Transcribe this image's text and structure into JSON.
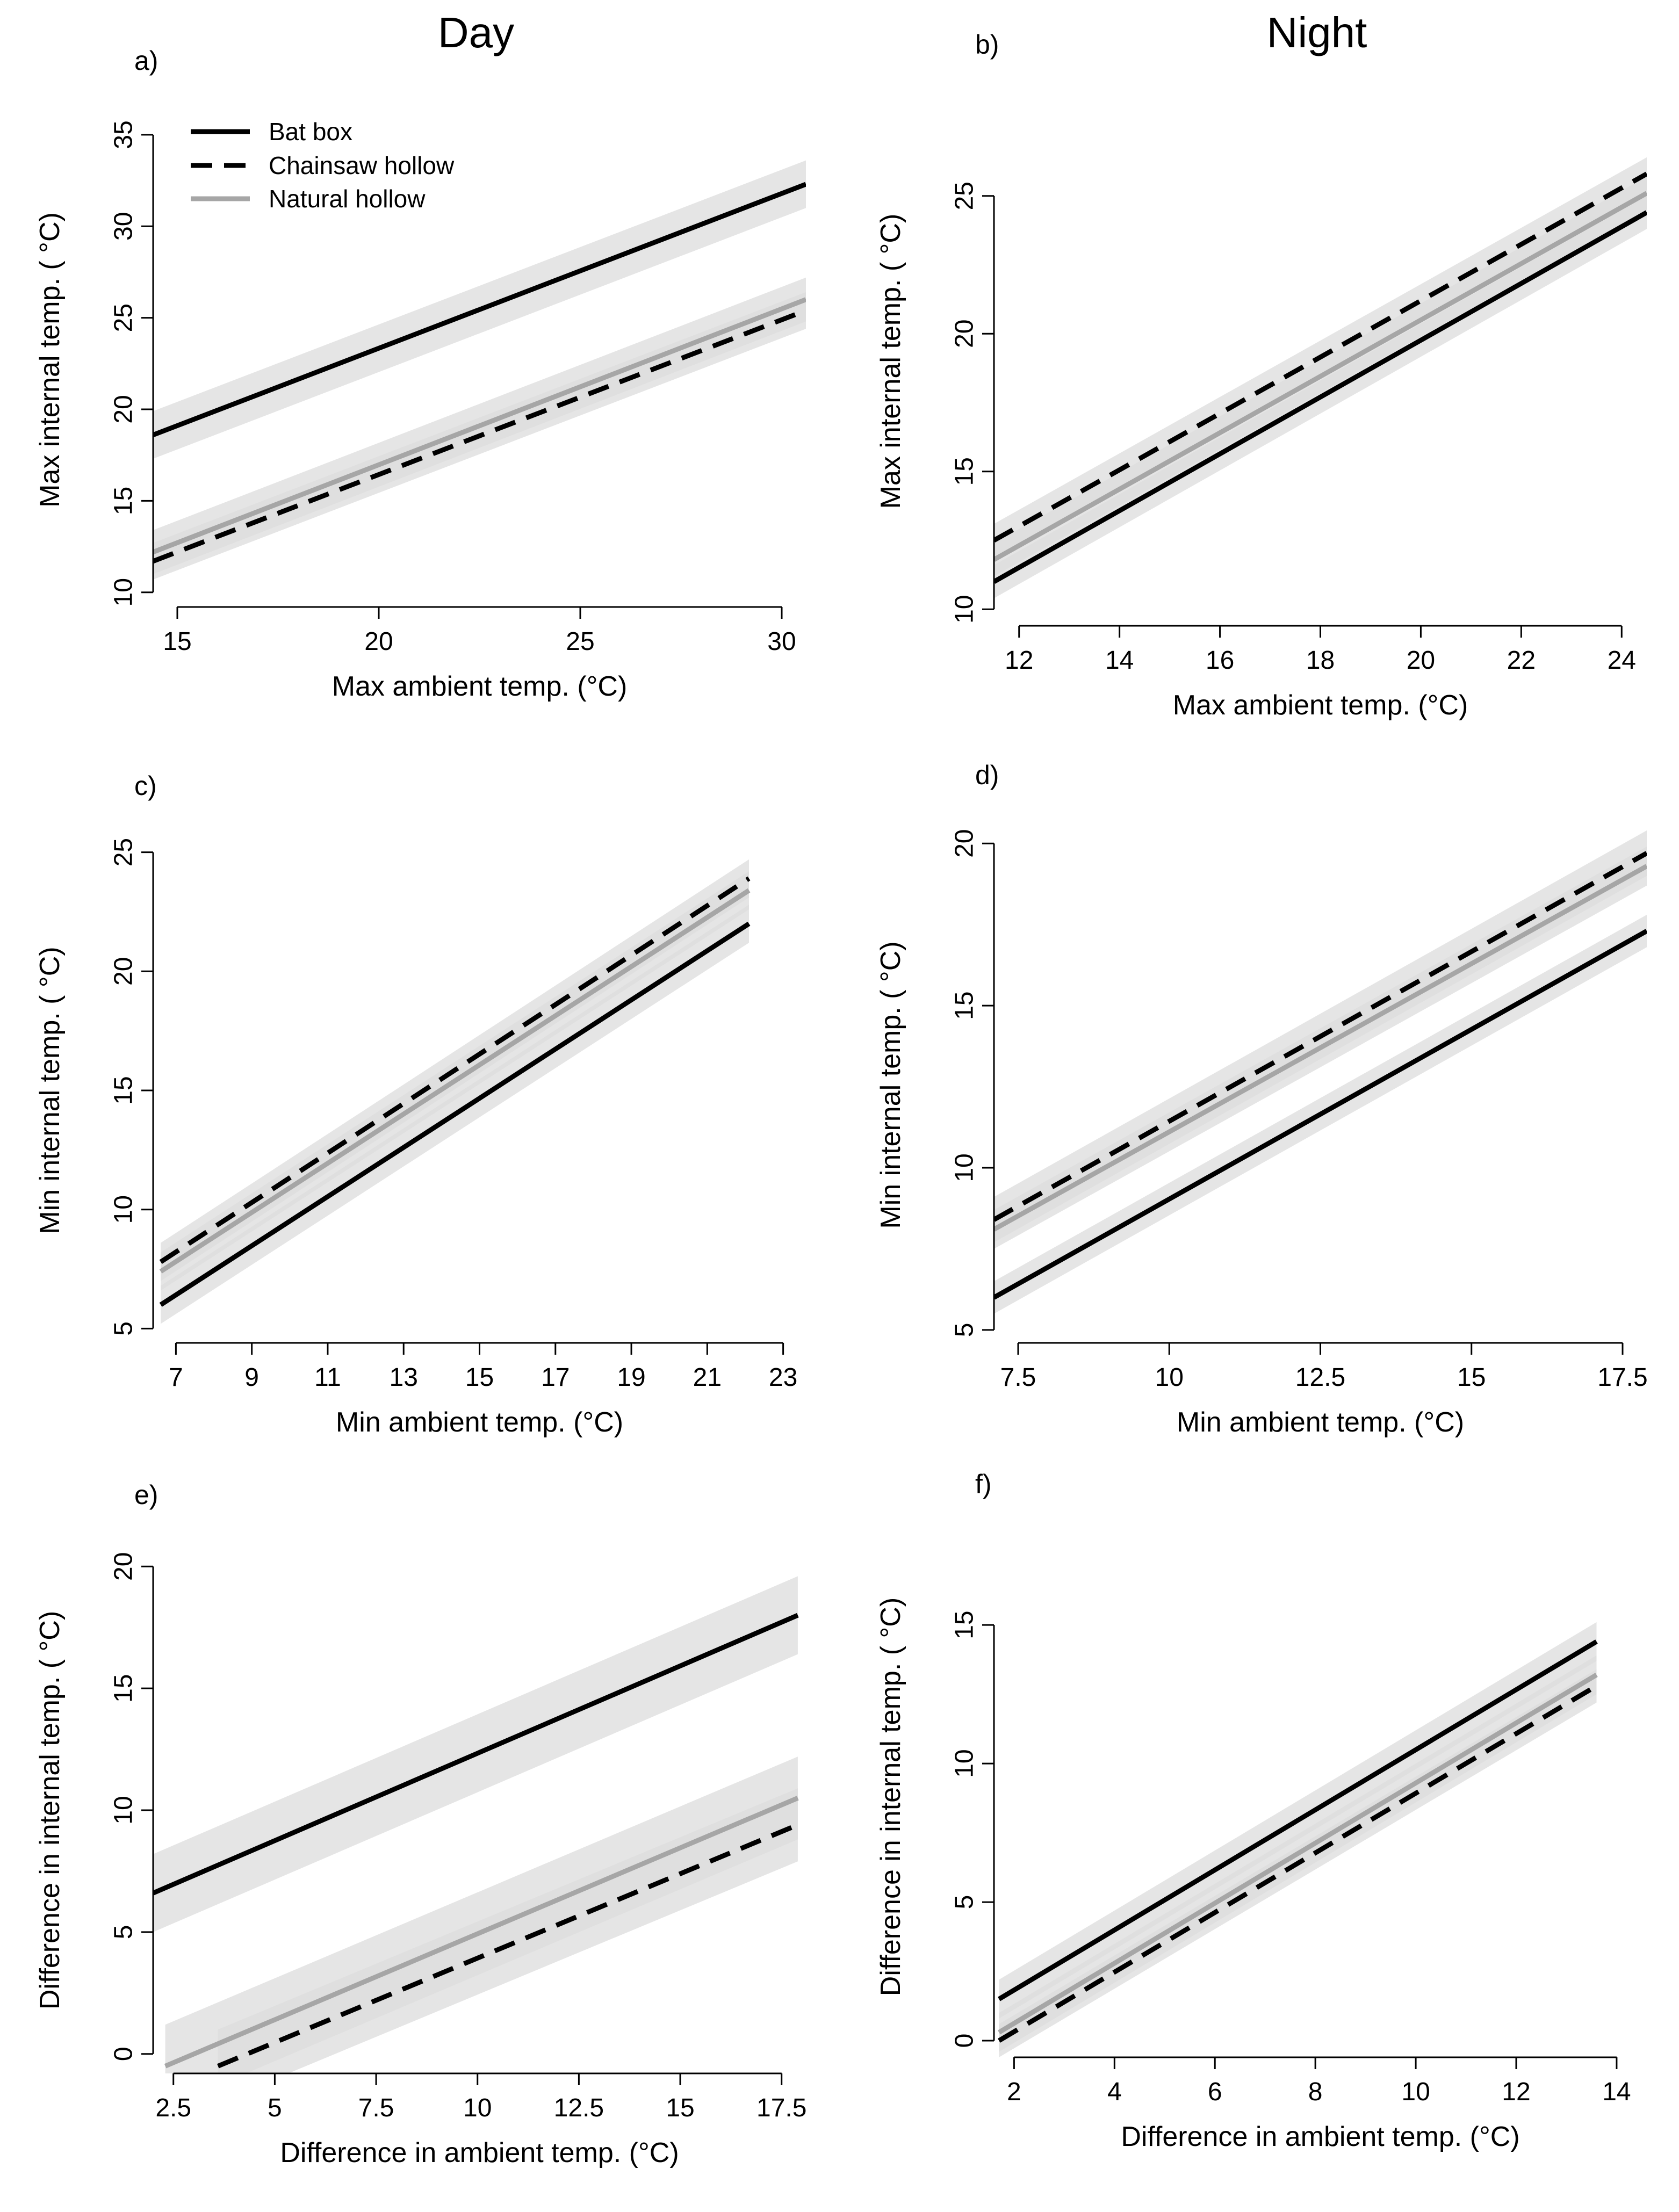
{
  "titles": {
    "day": "Day",
    "night": "Night"
  },
  "legend": {
    "bat_box": "Bat box",
    "chainsaw_hollow": "Chainsaw hollow",
    "natural_hollow": "Natural hollow"
  },
  "colors": {
    "bat_box": "#000000",
    "chainsaw_hollow": "#000000",
    "natural_hollow": "#a6a6a6",
    "ci_band": "#dcdcdc"
  },
  "chart_data": [
    {
      "id": "a",
      "panel_label": "a)",
      "type": "line",
      "xlabel": "Max ambient temp. (°C)",
      "ylabel": "Max internal temp. ( °C)",
      "xlim": [
        14.4,
        30.6
      ],
      "ylim": [
        9.2,
        36.2
      ],
      "xticks": [
        15,
        20,
        25,
        30
      ],
      "yticks": [
        10,
        15,
        20,
        25,
        30,
        35
      ],
      "xtick_labels": [
        "15",
        "20",
        "25",
        "30"
      ],
      "ytick_labels": [
        "10",
        "15",
        "20",
        "25",
        "30",
        "35"
      ],
      "series": [
        {
          "name": "Bat box",
          "key": "bat_box",
          "x": [
            14.4,
            30.6
          ],
          "y": [
            18.6,
            32.3
          ],
          "ci": 1.3
        },
        {
          "name": "Chainsaw hollow",
          "key": "chainsaw_hollow",
          "x": [
            14.4,
            30.6
          ],
          "y": [
            11.7,
            25.4
          ],
          "ci": 1.0
        },
        {
          "name": "Natural hollow",
          "key": "natural_hollow",
          "x": [
            14.4,
            30.6
          ],
          "y": [
            12.2,
            26.0
          ],
          "ci": 1.2
        }
      ]
    },
    {
      "id": "b",
      "panel_label": "b)",
      "type": "line",
      "xlabel": "Max ambient temp. (°C)",
      "ylabel": "Max internal temp. ( °C)",
      "xlim": [
        11.5,
        24.5
      ],
      "ylim": [
        9.4,
        28.6
      ],
      "xticks": [
        12,
        14,
        16,
        18,
        20,
        22,
        24
      ],
      "yticks": [
        10,
        15,
        20,
        25
      ],
      "xtick_labels": [
        "12",
        "14",
        "16",
        "18",
        "20",
        "22",
        "24"
      ],
      "ytick_labels": [
        "10",
        "15",
        "20",
        "25"
      ],
      "series": [
        {
          "name": "Bat box",
          "key": "bat_box",
          "x": [
            11.5,
            24.5
          ],
          "y": [
            11.0,
            24.4
          ],
          "ci": 0.6
        },
        {
          "name": "Chainsaw hollow",
          "key": "chainsaw_hollow",
          "x": [
            11.5,
            24.5
          ],
          "y": [
            12.5,
            25.8
          ],
          "ci": 0.6
        },
        {
          "name": "Natural hollow",
          "key": "natural_hollow",
          "x": [
            11.5,
            24.5
          ],
          "y": [
            11.8,
            25.1
          ],
          "ci": 0.6
        }
      ]
    },
    {
      "id": "c",
      "panel_label": "c)",
      "type": "line",
      "xlabel": "Min ambient temp. (°C)",
      "ylabel": "Min internal temp. ( °C)",
      "xlim": [
        6.4,
        23.6
      ],
      "ylim": [
        4.4,
        25.6
      ],
      "xticks": [
        7,
        9,
        11,
        13,
        15,
        17,
        19,
        21,
        23
      ],
      "yticks": [
        5,
        10,
        15,
        20,
        25
      ],
      "xtick_labels": [
        "7",
        "9",
        "11",
        "13",
        "15",
        "17",
        "19",
        "21",
        "23"
      ],
      "ytick_labels": [
        "5",
        "10",
        "15",
        "20",
        "25"
      ],
      "series": [
        {
          "name": "Bat box",
          "key": "bat_box",
          "x": [
            6.6,
            22.1
          ],
          "y": [
            6.0,
            22.0
          ],
          "ci": 0.8
        },
        {
          "name": "Chainsaw hollow",
          "key": "chainsaw_hollow",
          "x": [
            6.6,
            22.1
          ],
          "y": [
            7.8,
            23.9
          ],
          "ci": 0.8
        },
        {
          "name": "Natural hollow",
          "key": "natural_hollow",
          "x": [
            6.6,
            22.1
          ],
          "y": [
            7.4,
            23.4
          ],
          "ci": 0.8
        }
      ]
    },
    {
      "id": "d",
      "panel_label": "d)",
      "type": "line",
      "xlabel": "Min ambient temp. (°C)",
      "ylabel": "Min internal temp. ( °C)",
      "xlim": [
        7.1,
        17.9
      ],
      "ylim": [
        4.6,
        20.5
      ],
      "xticks": [
        7.5,
        10,
        12.5,
        15,
        17.5
      ],
      "yticks": [
        5,
        10,
        15,
        20
      ],
      "xtick_labels": [
        "7.5",
        "10",
        "12.5",
        "15",
        "17.5"
      ],
      "ytick_labels": [
        "5",
        "10",
        "15",
        "20"
      ],
      "series": [
        {
          "name": "Bat box",
          "key": "bat_box",
          "x": [
            7.1,
            17.9
          ],
          "y": [
            6.0,
            17.3
          ],
          "ci": 0.5
        },
        {
          "name": "Chainsaw hollow",
          "key": "chainsaw_hollow",
          "x": [
            7.1,
            17.9
          ],
          "y": [
            8.4,
            19.7
          ],
          "ci": 0.7
        },
        {
          "name": "Natural hollow",
          "key": "natural_hollow",
          "x": [
            7.1,
            17.9
          ],
          "y": [
            8.1,
            19.3
          ],
          "ci": 0.6
        }
      ]
    },
    {
      "id": "e",
      "panel_label": "e)",
      "type": "line",
      "xlabel": "Difference in ambient temp. (°C)",
      "ylabel": "Difference in internal temp. ( °C)",
      "xlim": [
        2.0,
        18.1
      ],
      "ylim": [
        -0.8,
        20.8
      ],
      "xticks": [
        2.5,
        5,
        7.5,
        10,
        12.5,
        15,
        17.5
      ],
      "yticks": [
        0,
        5,
        10,
        15,
        20
      ],
      "xtick_labels": [
        "2.5",
        "5",
        "7.5",
        "10",
        "12.5",
        "15",
        "17.5"
      ],
      "ytick_labels": [
        "0",
        "5",
        "10",
        "15",
        "20"
      ],
      "series": [
        {
          "name": "Bat box",
          "key": "bat_box",
          "x": [
            2.0,
            17.9
          ],
          "y": [
            6.6,
            18.0
          ],
          "ci": 1.6
        },
        {
          "name": "Chainsaw hollow",
          "key": "chainsaw_hollow",
          "x": [
            3.6,
            17.9
          ],
          "y": [
            -0.5,
            9.4
          ],
          "ci": 1.5
        },
        {
          "name": "Natural hollow",
          "key": "natural_hollow",
          "x": [
            2.3,
            17.9
          ],
          "y": [
            -0.5,
            10.5
          ],
          "ci": 1.7
        }
      ]
    },
    {
      "id": "f",
      "panel_label": "f)",
      "type": "line",
      "xlabel": "Difference in ambient temp. (°C)",
      "ylabel": "Difference in internal temp. ( °C)",
      "xlim": [
        1.6,
        14.6
      ],
      "ylim": [
        -0.6,
        18.2
      ],
      "xticks": [
        2,
        4,
        6,
        8,
        10,
        12,
        14
      ],
      "yticks": [
        0,
        5,
        10,
        15
      ],
      "xtick_labels": [
        "2",
        "4",
        "6",
        "8",
        "10",
        "12",
        "14"
      ],
      "ytick_labels": [
        "0",
        "5",
        "10",
        "15"
      ],
      "series": [
        {
          "name": "Bat box",
          "key": "bat_box",
          "x": [
            1.7,
            13.6
          ],
          "y": [
            1.5,
            14.4
          ],
          "ci": 0.7
        },
        {
          "name": "Chainsaw hollow",
          "key": "chainsaw_hollow",
          "x": [
            1.7,
            13.6
          ],
          "y": [
            0.0,
            12.8
          ],
          "ci": 0.6
        },
        {
          "name": "Natural hollow",
          "key": "natural_hollow",
          "x": [
            1.7,
            13.6
          ],
          "y": [
            0.3,
            13.2
          ],
          "ci": 0.7
        }
      ]
    }
  ]
}
